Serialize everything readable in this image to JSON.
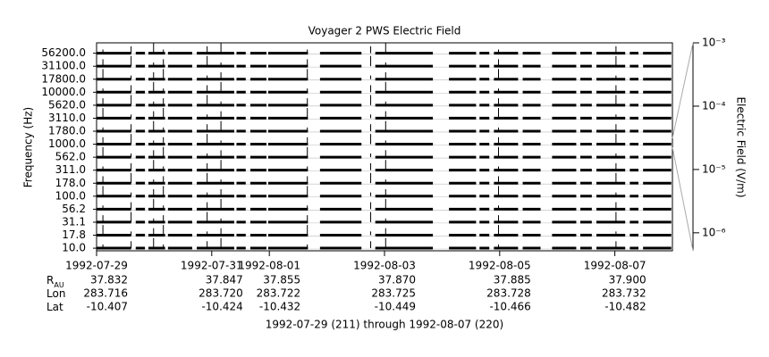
{
  "chart_data": {
    "type": "strip",
    "title": "Voyager 2 PWS Electric Field",
    "ylabel": "Frequency (Hz)",
    "y2label": "Electric Field (V/m)",
    "color": "#000000",
    "channels": [
      {
        "value": 56200,
        "label": "56200.0"
      },
      {
        "value": 31100,
        "label": "31100.0"
      },
      {
        "value": 17800,
        "label": "17800.0"
      },
      {
        "value": 10000,
        "label": "10000.0"
      },
      {
        "value": 5620,
        "label": "5620.0"
      },
      {
        "value": 3110,
        "label": "3110.0"
      },
      {
        "value": 1780,
        "label": "1780.0"
      },
      {
        "value": 1000,
        "label": "1000.0"
      },
      {
        "value": 562,
        "label": "562.0"
      },
      {
        "value": 311,
        "label": "311.0"
      },
      {
        "value": 178,
        "label": "178.0"
      },
      {
        "value": 100,
        "label": "100.0"
      },
      {
        "value": 56.2,
        "label": "56.2"
      },
      {
        "value": 31.1,
        "label": "31.1"
      },
      {
        "value": 17.8,
        "label": "17.8"
      },
      {
        "value": 10,
        "label": "10.0"
      }
    ],
    "xlim": [
      211,
      221
    ],
    "xticks": [
      {
        "value": 211,
        "label": "1992-07-29"
      },
      {
        "value": 213,
        "label": "1992-07-31"
      },
      {
        "value": 214,
        "label": "1992-08-01"
      },
      {
        "value": 216,
        "label": "1992-08-03"
      },
      {
        "value": 218,
        "label": "1992-08-05"
      },
      {
        "value": 220,
        "label": "1992-08-07"
      }
    ],
    "y2scale": "log",
    "y2lim": [
      5.2e-07,
      0.001
    ],
    "y2ticks": [
      {
        "value": 0.001,
        "label": "10⁻³"
      },
      {
        "value": 0.0001,
        "label": "10⁻⁴"
      },
      {
        "value": 1e-05,
        "label": "10⁻⁵"
      },
      {
        "value": 1e-06,
        "label": "10⁻⁶"
      }
    ],
    "segments": [
      [
        211.0,
        211.6
      ],
      [
        211.68,
        211.84
      ],
      [
        211.9,
        212.19
      ],
      [
        212.24,
        212.66
      ],
      [
        212.74,
        213.39
      ],
      [
        213.43,
        213.59
      ],
      [
        213.67,
        213.95
      ],
      [
        213.98,
        214.67
      ],
      [
        214.88,
        215.6
      ],
      [
        215.84,
        216.84
      ],
      [
        217.12,
        217.59
      ],
      [
        217.65,
        217.82
      ],
      [
        217.9,
        218.32
      ],
      [
        218.4,
        218.71
      ],
      [
        218.91,
        219.33
      ],
      [
        219.4,
        219.6
      ],
      [
        219.68,
        220.18
      ],
      [
        220.26,
        220.41
      ],
      [
        220.49,
        220.98
      ]
    ],
    "bursts": [
      211.11,
      211.6,
      211.99,
      212.16,
      212.92,
      213.16,
      214.66,
      215.76,
      216.02,
      217.98,
      220.02
    ],
    "ephemeris": [
      {
        "label": "R",
        "subscript": "AU",
        "values": [
          "37.832",
          "37.847",
          "37.855",
          "37.870",
          "37.885",
          "37.900"
        ]
      },
      {
        "label": "Lon",
        "values": [
          "283.716",
          "283.720",
          "283.722",
          "283.725",
          "283.728",
          "283.732"
        ]
      },
      {
        "label": "Lat",
        "values": [
          "-10.407",
          "-10.424",
          "-10.432",
          "-10.449",
          "-10.466",
          "-10.482"
        ]
      }
    ],
    "footer": "1992-07-29 (211) through 1992-08-07 (220)"
  }
}
